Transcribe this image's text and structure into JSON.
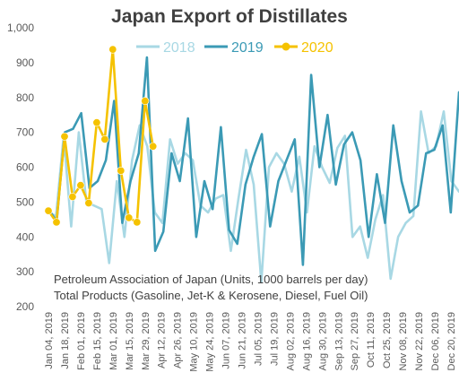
{
  "chart_data": {
    "type": "line",
    "title": "Japan Export of Distillates",
    "annotation_lines": [
      "Petroleum Association of Japan  (Units, 1000 barrels per day)",
      "Total Products (Gasoline, Jet-K & Kerosene, Diesel, Fuel Oil)"
    ],
    "ylim": [
      200,
      1000
    ],
    "y_ticks": [
      "200",
      "300",
      "400",
      "500",
      "600",
      "700",
      "800",
      "900",
      "1,000"
    ],
    "x_tick_labels": [
      "Jan 04, 2019",
      "Jan 18, 2019",
      "Feb 01, 2019",
      "Feb 15, 2019",
      "Mar 01, 2019",
      "Mar 15, 2019",
      "Mar 29, 2019",
      "Apr 12, 2019",
      "Apr 26, 2019",
      "May 10, 2019",
      "May 24, 2019",
      "Jun 07, 2019",
      "Jun 21, 2019",
      "Jul 05, 2019",
      "Jul 19, 2019",
      "Aug 02, 2019",
      "Aug 16, 2019",
      "Aug 30, 2019",
      "Sep 13, 2019",
      "Sep 27, 2019",
      "Oct 11, 2019",
      "Oct 25, 2019",
      "Nov 08, 2019",
      "Nov 22, 2019",
      "Dec 06, 2019",
      "Dec 20, 2019"
    ],
    "legend_position": "top-right",
    "grid": false,
    "series": [
      {
        "name": "2018",
        "color": "#a8d8e4",
        "marker": "none",
        "values": [
          470,
          460,
          690,
          430,
          700,
          500,
          490,
          480,
          325,
          560,
          400,
          620,
          720,
          660,
          470,
          440,
          680,
          610,
          640,
          620,
          490,
          470,
          510,
          520,
          360,
          510,
          650,
          550,
          270,
          600,
          640,
          610,
          530,
          630,
          470,
          660,
          600,
          555,
          655,
          690,
          400,
          430,
          340,
          450,
          520,
          280,
          400,
          440,
          460,
          760,
          640,
          660,
          760,
          560,
          530
        ]
      },
      {
        "name": "2019",
        "color": "#3b9ab5",
        "marker": "none",
        "values": [
          480,
          445,
          700,
          710,
          755,
          540,
          560,
          620,
          790,
          440,
          560,
          640,
          915,
          360,
          415,
          640,
          560,
          740,
          400,
          560,
          480,
          715,
          420,
          380,
          550,
          630,
          695,
          430,
          560,
          620,
          680,
          320,
          865,
          600,
          750,
          550,
          665,
          700,
          620,
          400,
          580,
          440,
          720,
          560,
          470,
          490,
          640,
          650,
          720,
          470,
          815
        ]
      },
      {
        "name": "2020",
        "color": "#f5c200",
        "marker": "circle",
        "values": [
          475,
          442,
          688,
          515,
          548,
          497,
          728,
          680,
          938,
          590,
          455,
          442,
          790,
          660
        ]
      }
    ]
  }
}
